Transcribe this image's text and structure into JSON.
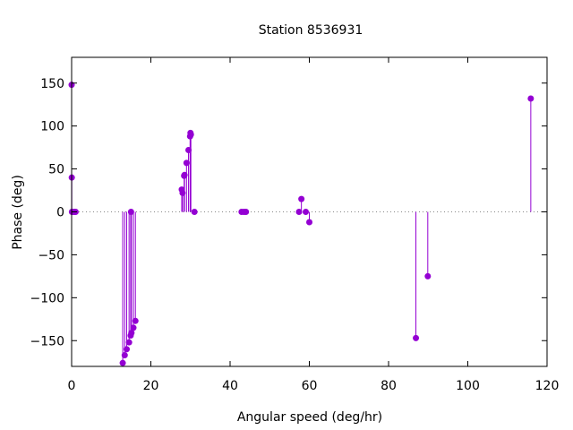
{
  "chart_data": {
    "type": "scatter",
    "style": "impulses-with-points",
    "title": "Station 8536931",
    "xlabel": "Angular speed (deg/hr)",
    "ylabel": "Phase (deg)",
    "xlim": [
      0,
      120
    ],
    "ylim": [
      -180,
      180
    ],
    "xticks": [
      0,
      20,
      40,
      60,
      80,
      100,
      120
    ],
    "yticks": [
      -150,
      -100,
      -50,
      0,
      50,
      100,
      150
    ],
    "grid": false,
    "zero_line": "dotted",
    "color": "#9400d3",
    "points": [
      {
        "x": 0.0,
        "y": 148
      },
      {
        "x": 0.04,
        "y": 40
      },
      {
        "x": 0.08,
        "y": 0
      },
      {
        "x": 0.5,
        "y": 0
      },
      {
        "x": 0.8,
        "y": 0
      },
      {
        "x": 1.0,
        "y": 0
      },
      {
        "x": 12.9,
        "y": -176
      },
      {
        "x": 13.4,
        "y": -167
      },
      {
        "x": 13.9,
        "y": -160
      },
      {
        "x": 14.5,
        "y": -152
      },
      {
        "x": 14.9,
        "y": -144
      },
      {
        "x": 15.0,
        "y": 0
      },
      {
        "x": 15.1,
        "y": -141
      },
      {
        "x": 15.6,
        "y": -135
      },
      {
        "x": 16.1,
        "y": -127
      },
      {
        "x": 27.8,
        "y": 26
      },
      {
        "x": 28.0,
        "y": 22
      },
      {
        "x": 28.4,
        "y": 42
      },
      {
        "x": 28.5,
        "y": 43
      },
      {
        "x": 29.0,
        "y": 57
      },
      {
        "x": 29.5,
        "y": 72
      },
      {
        "x": 29.9,
        "y": 88
      },
      {
        "x": 30.0,
        "y": 92
      },
      {
        "x": 30.1,
        "y": 90
      },
      {
        "x": 31.0,
        "y": 0
      },
      {
        "x": 42.9,
        "y": 0
      },
      {
        "x": 43.5,
        "y": 0
      },
      {
        "x": 44.0,
        "y": 0
      },
      {
        "x": 57.4,
        "y": 0
      },
      {
        "x": 58.0,
        "y": 15
      },
      {
        "x": 59.1,
        "y": 0
      },
      {
        "x": 60.0,
        "y": -12
      },
      {
        "x": 86.9,
        "y": -147
      },
      {
        "x": 89.9,
        "y": -75
      },
      {
        "x": 115.9,
        "y": 132
      }
    ]
  }
}
